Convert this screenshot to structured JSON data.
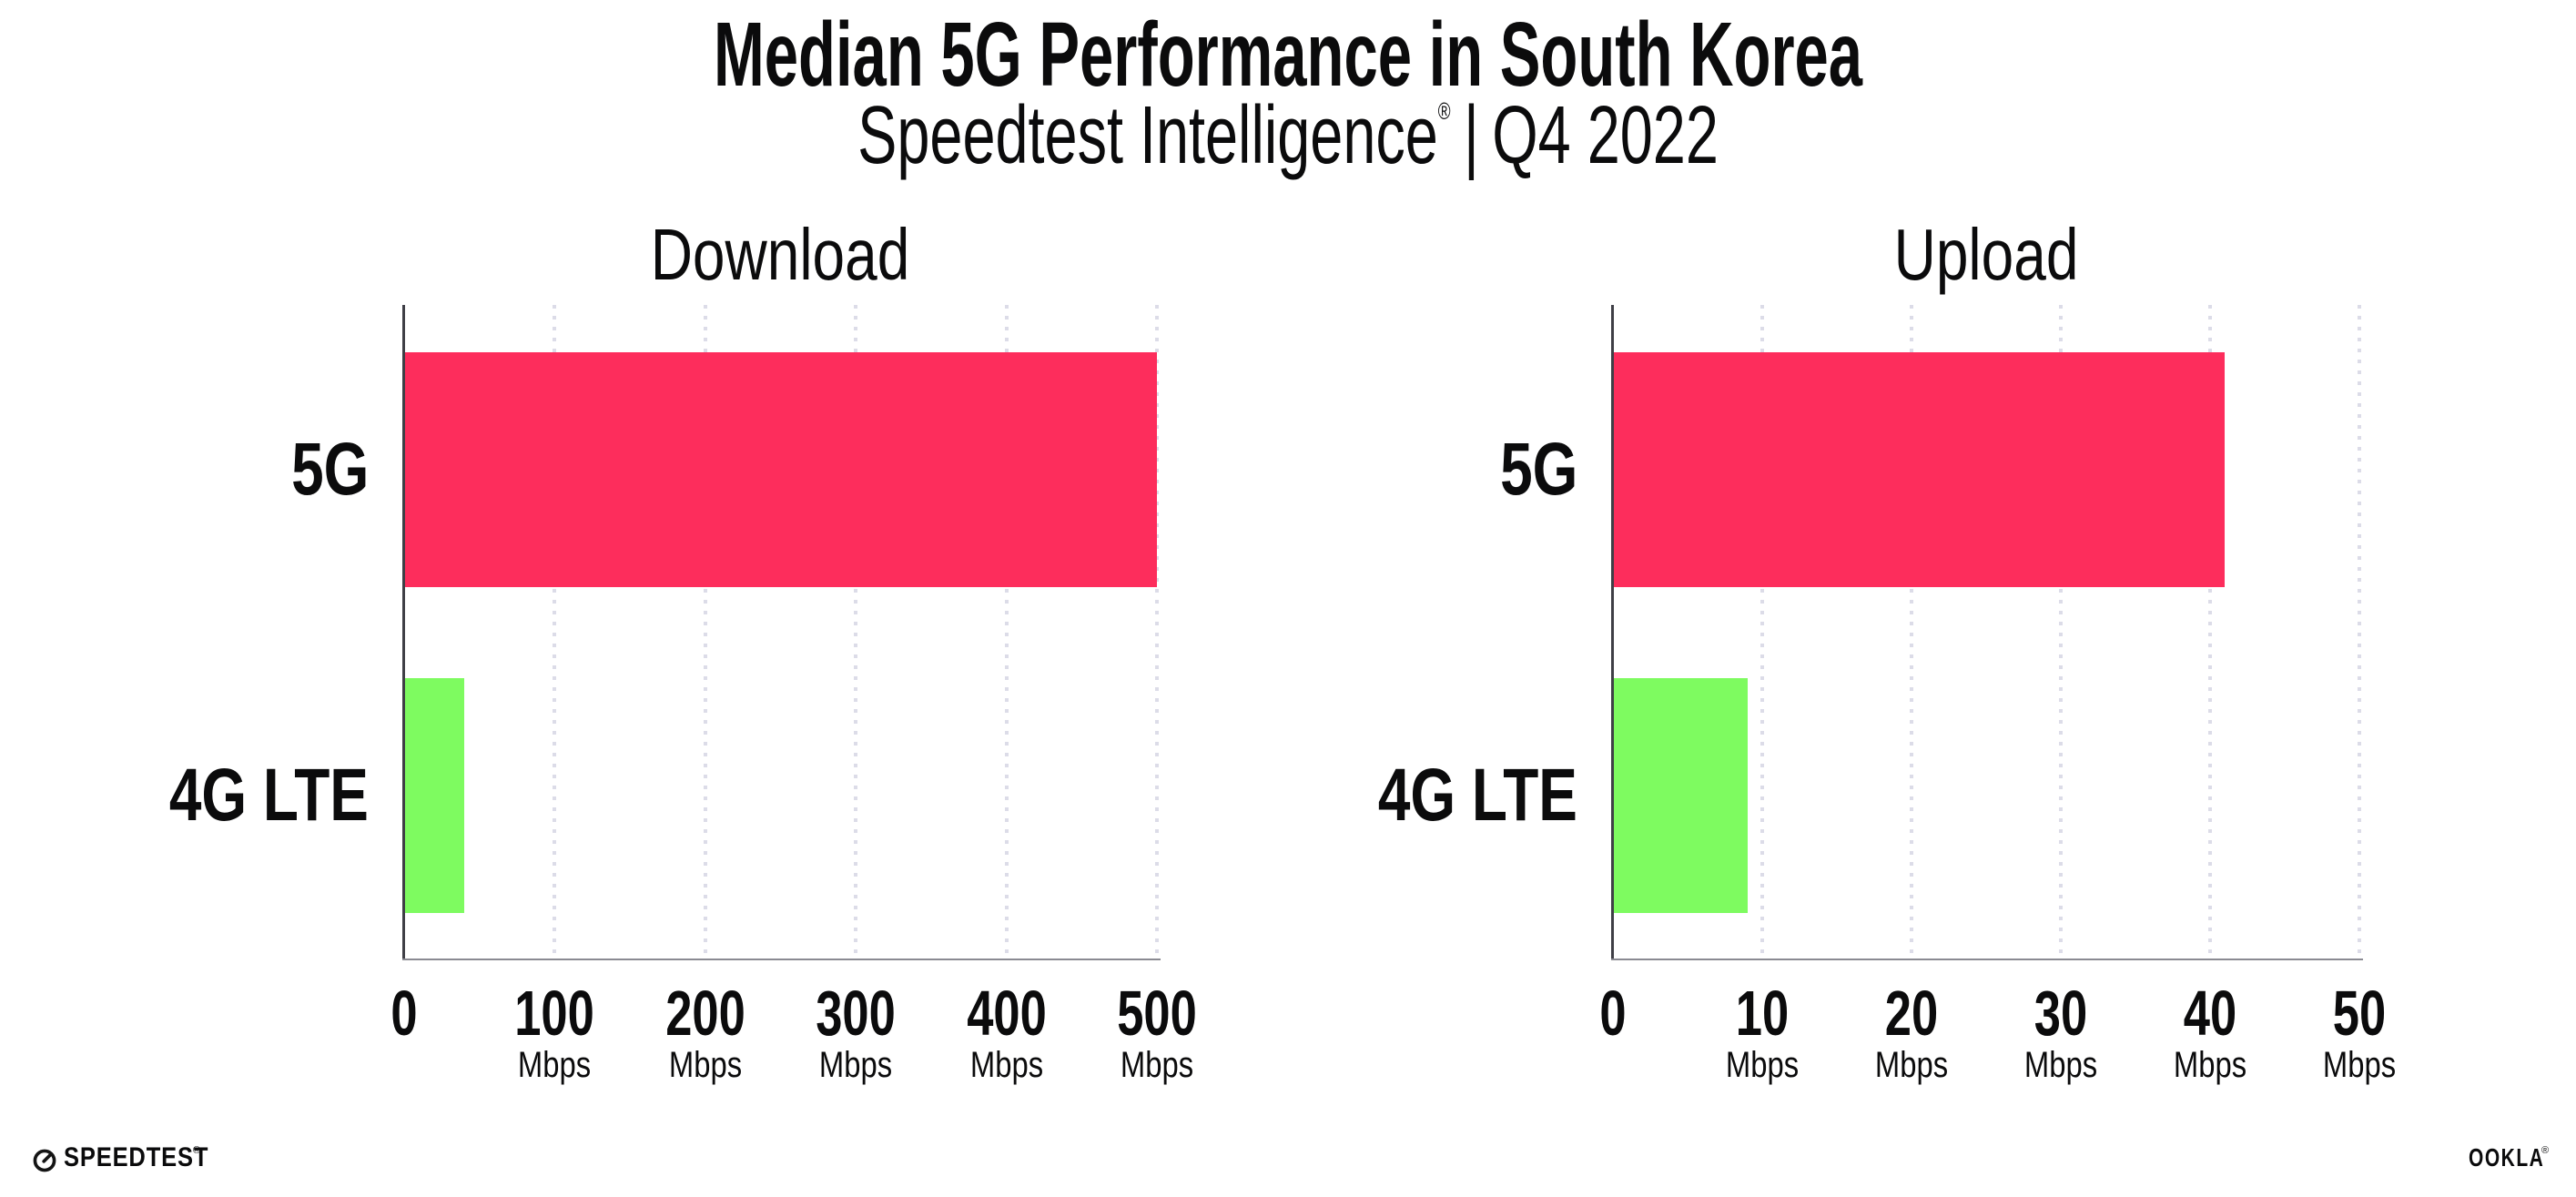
{
  "header": {
    "title": "Median 5G Performance in South Korea",
    "subtitle": {
      "brand": "Speedtest Intelligence",
      "reg_mark": "®",
      "separator": "|",
      "period": "Q4 2022"
    }
  },
  "chart_data": [
    {
      "type": "bar",
      "orientation": "horizontal",
      "title": "Download",
      "categories": [
        "5G",
        "4G LTE"
      ],
      "values": [
        500,
        40
      ],
      "unit": "Mbps",
      "bar_colors": [
        "#FD2D5C",
        "#7EFB60"
      ],
      "xlim": [
        0,
        500
      ],
      "xticks": [
        0,
        100,
        200,
        300,
        400,
        500
      ],
      "xtick_unit": "Mbps",
      "grid": "vertical-dotted",
      "legend": "none"
    },
    {
      "type": "bar",
      "orientation": "horizontal",
      "title": "Upload",
      "categories": [
        "5G",
        "4G LTE"
      ],
      "values": [
        41,
        9
      ],
      "unit": "Mbps",
      "bar_colors": [
        "#FD2D5C",
        "#7EFB60"
      ],
      "xlim": [
        0,
        50
      ],
      "xticks": [
        0,
        10,
        20,
        30,
        40,
        50
      ],
      "xtick_unit": "Mbps",
      "grid": "vertical-dotted",
      "legend": "none"
    }
  ],
  "footer": {
    "speedtest_wordmark": "SPEEDTEST",
    "speedtest_reg": "®",
    "ookla_wordmark": "OOKLA",
    "ookla_reg": "®"
  },
  "colors": {
    "bar_5g": "#FD2D5C",
    "bar_4g_lte": "#7EFB60",
    "background": "#FFFFFF",
    "text": "#0B0B0C",
    "grid_dot": "#DCDCE8",
    "x_axis_line": "#8A8A92",
    "y_axis_line": "#3F3F46"
  }
}
